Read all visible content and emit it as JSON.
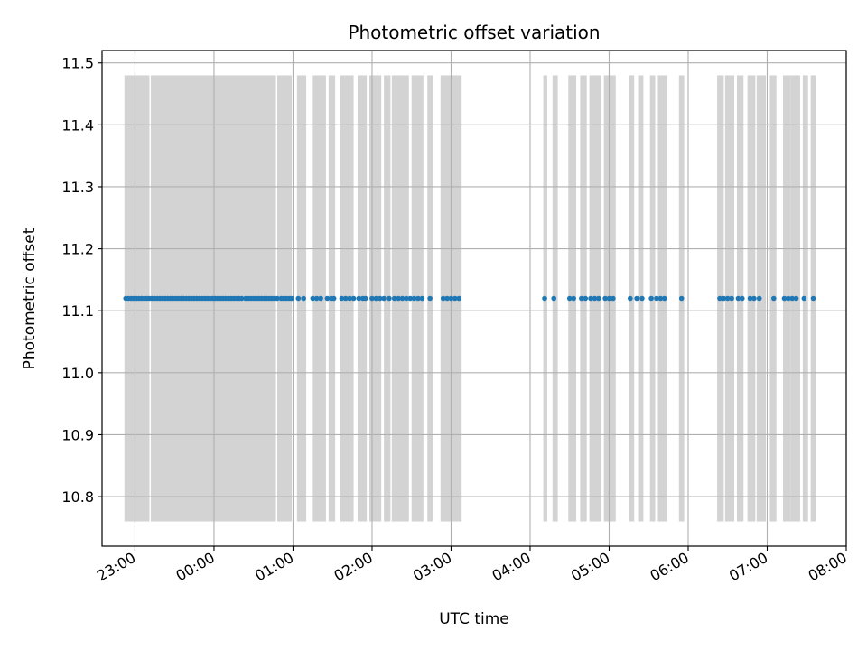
{
  "chart_data": {
    "type": "scatter",
    "title": "Photometric offset variation",
    "xlabel": "UTC time",
    "ylabel": "Photometric offset",
    "x_axis": "time (HH:MM UTC), date rotated labels",
    "xlim": [
      "22:35",
      "08:00"
    ],
    "ylim": [
      10.72,
      11.52
    ],
    "x_ticks": [
      "23:00",
      "00:00",
      "01:00",
      "02:00",
      "03:00",
      "04:00",
      "05:00",
      "06:00",
      "07:00",
      "08:00"
    ],
    "y_ticks": [
      "10.8",
      "10.9",
      "11.0",
      "11.1",
      "11.2",
      "11.3",
      "11.4",
      "11.5"
    ],
    "grid": true,
    "bands": {
      "color": "#d3d3d3",
      "y_range": [
        10.76,
        11.48
      ],
      "intervals": [
        [
          "22:52",
          "23:11"
        ],
        [
          "23:12",
          "00:47"
        ],
        [
          "00:48",
          "00:59"
        ],
        [
          "01:03",
          "01:10"
        ],
        [
          "01:15",
          "01:25"
        ],
        [
          "01:27",
          "01:32"
        ],
        [
          "01:36",
          "01:46"
        ],
        [
          "01:49",
          "01:56"
        ],
        [
          "01:58",
          "02:07"
        ],
        [
          "02:09",
          "02:14"
        ],
        [
          "02:15",
          "02:28"
        ],
        [
          "02:30",
          "02:39"
        ],
        [
          "02:42",
          "02:46"
        ],
        [
          "02:52",
          "03:08"
        ],
        [
          "04:10",
          "04:13"
        ],
        [
          "04:17",
          "04:21"
        ],
        [
          "04:29",
          "04:35"
        ],
        [
          "04:38",
          "04:43"
        ],
        [
          "04:45",
          "04:54"
        ],
        [
          "04:56",
          "05:05"
        ],
        [
          "05:15",
          "05:19"
        ],
        [
          "05:22",
          "05:26"
        ],
        [
          "05:31",
          "05:35"
        ],
        [
          "05:37",
          "05:44"
        ],
        [
          "05:53",
          "05:57"
        ],
        [
          "06:22",
          "06:27"
        ],
        [
          "06:28",
          "06:35"
        ],
        [
          "06:37",
          "06:42"
        ],
        [
          "06:45",
          "06:51"
        ],
        [
          "06:52",
          "06:59"
        ],
        [
          "07:02",
          "07:07"
        ],
        [
          "07:12",
          "07:18"
        ],
        [
          "07:18",
          "07:25"
        ],
        [
          "07:27",
          "07:31"
        ],
        [
          "07:33",
          "07:37"
        ]
      ]
    },
    "series": [
      {
        "color": "#1f77b4",
        "y_value": 11.12,
        "x": [
          "22:53",
          "22:55",
          "22:57",
          "22:59",
          "23:01",
          "23:03",
          "23:05",
          "23:07",
          "23:09",
          "23:11",
          "23:13",
          "23:15",
          "23:17",
          "23:19",
          "23:21",
          "23:23",
          "23:25",
          "23:27",
          "23:29",
          "23:31",
          "23:33",
          "23:35",
          "23:37",
          "23:39",
          "23:41",
          "23:43",
          "23:45",
          "23:47",
          "23:49",
          "23:51",
          "23:53",
          "23:55",
          "23:57",
          "23:59",
          "00:01",
          "00:03",
          "00:05",
          "00:07",
          "00:09",
          "00:11",
          "00:13",
          "00:15",
          "00:17",
          "00:19",
          "00:21",
          "00:24",
          "00:26",
          "00:28",
          "00:30",
          "00:32",
          "00:34",
          "00:36",
          "00:38",
          "00:40",
          "00:42",
          "00:44",
          "00:46",
          "00:48",
          "00:51",
          "00:53",
          "00:55",
          "00:57",
          "00:59",
          "01:04",
          "01:08",
          "01:15",
          "01:18",
          "01:21",
          "01:26",
          "01:29",
          "01:31",
          "01:37",
          "01:40",
          "01:43",
          "01:46",
          "01:50",
          "01:53",
          "01:55",
          "02:00",
          "02:03",
          "02:06",
          "02:09",
          "02:13",
          "02:17",
          "02:20",
          "02:23",
          "02:26",
          "02:29",
          "02:32",
          "02:35",
          "02:38",
          "02:44",
          "02:54",
          "02:57",
          "03:00",
          "03:03",
          "03:06",
          "04:11",
          "04:18",
          "04:30",
          "04:33",
          "04:39",
          "04:42",
          "04:46",
          "04:49",
          "04:52",
          "04:57",
          "05:00",
          "05:03",
          "05:16",
          "05:21",
          "05:25",
          "05:32",
          "05:36",
          "05:39",
          "05:42",
          "05:55",
          "06:24",
          "06:27",
          "06:30",
          "06:33",
          "06:38",
          "06:41",
          "06:47",
          "06:50",
          "06:54",
          "07:05",
          "07:13",
          "07:16",
          "07:19",
          "07:22",
          "07:28",
          "07:35"
        ]
      }
    ]
  }
}
